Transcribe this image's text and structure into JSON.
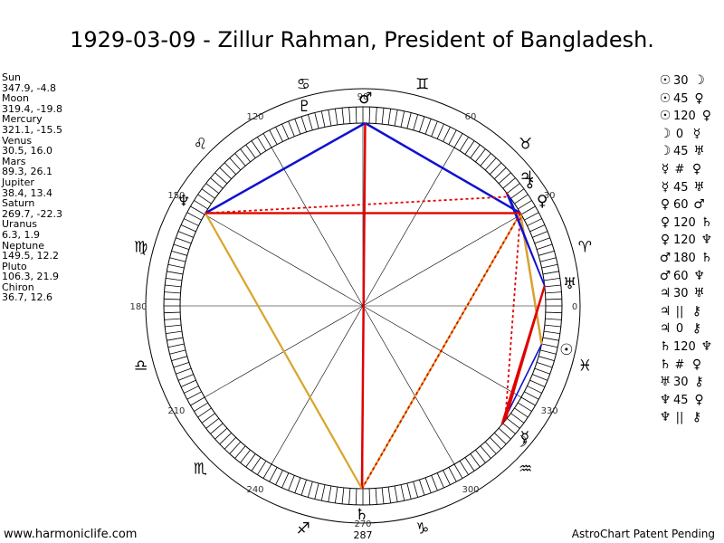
{
  "title": "1929-03-09 - Zillur Rahman, President of Bangladesh.",
  "planets": [
    {
      "name": "Sun",
      "coords": "347.9, -4.8"
    },
    {
      "name": "Moon",
      "coords": "319.4, -19.8"
    },
    {
      "name": "Mercury",
      "coords": "321.1, -15.5"
    },
    {
      "name": "Venus",
      "coords": "30.5, 16.0"
    },
    {
      "name": "Mars",
      "coords": "89.3, 26.1"
    },
    {
      "name": "Jupiter",
      "coords": "38.4, 13.4"
    },
    {
      "name": "Saturn",
      "coords": "269.7, -22.3"
    },
    {
      "name": "Uranus",
      "coords": "6.3, 1.9"
    },
    {
      "name": "Neptune",
      "coords": "149.5, 12.2"
    },
    {
      "name": "Pluto",
      "coords": "106.3, 21.9"
    },
    {
      "name": "Chiron",
      "coords": "36.7, 12.6"
    }
  ],
  "aspects": [
    {
      "a": "sun-icon",
      "ag": "☉",
      "sym": "30",
      "b": "moon-icon",
      "bg": "☽"
    },
    {
      "a": "sun-icon",
      "ag": "☉",
      "sym": "45",
      "b": "venus-icon",
      "bg": "♀"
    },
    {
      "a": "sun-icon",
      "ag": "☉",
      "sym": "120",
      "b": "venus-icon",
      "bg": "♀"
    },
    {
      "a": "moon-icon",
      "ag": "☽",
      "sym": "0",
      "b": "mercury-icon",
      "bg": "☿"
    },
    {
      "a": "moon-icon",
      "ag": "☽",
      "sym": "45",
      "b": "uranus-icon",
      "bg": "♅"
    },
    {
      "a": "mercury-icon",
      "ag": "☿",
      "sym": "#",
      "b": "venus-icon",
      "bg": "♀"
    },
    {
      "a": "mercury-icon",
      "ag": "☿",
      "sym": "45",
      "b": "uranus-icon",
      "bg": "♅"
    },
    {
      "a": "venus-icon",
      "ag": "♀",
      "sym": "60",
      "b": "mars-icon",
      "bg": "♂"
    },
    {
      "a": "venus-icon",
      "ag": "♀",
      "sym": "120",
      "b": "saturn-icon",
      "bg": "♄"
    },
    {
      "a": "venus-icon",
      "ag": "♀",
      "sym": "120",
      "b": "neptune-icon",
      "bg": "♆"
    },
    {
      "a": "mars-icon",
      "ag": "♂",
      "sym": "180",
      "b": "saturn-icon",
      "bg": "♄"
    },
    {
      "a": "mars-icon",
      "ag": "♂",
      "sym": "60",
      "b": "neptune-icon",
      "bg": "♆"
    },
    {
      "a": "jupiter-icon",
      "ag": "♃",
      "sym": "30",
      "b": "uranus-icon",
      "bg": "♅"
    },
    {
      "a": "jupiter-icon",
      "ag": "♃",
      "sym": "||",
      "b": "chiron-icon",
      "bg": "⚷"
    },
    {
      "a": "jupiter-icon",
      "ag": "♃",
      "sym": "0",
      "b": "chiron-icon",
      "bg": "⚷"
    },
    {
      "a": "saturn-icon",
      "ag": "♄",
      "sym": "120",
      "b": "neptune-icon",
      "bg": "♆"
    },
    {
      "a": "saturn-icon",
      "ag": "♄",
      "sym": "#",
      "b": "venus-icon",
      "bg": "♀"
    },
    {
      "a": "uranus-icon",
      "ag": "♅",
      "sym": "30",
      "b": "chiron-icon",
      "bg": "⚷"
    },
    {
      "a": "neptune-icon",
      "ag": "♆",
      "sym": "45",
      "b": "venus-icon",
      "bg": "♀"
    },
    {
      "a": "neptune-icon",
      "ag": "♆",
      "sym": "||",
      "b": "chiron-icon",
      "bg": "⚷"
    }
  ],
  "wheel": {
    "degree_labels": [
      "0",
      "30",
      "60",
      "90",
      "120",
      "150",
      "180",
      "210",
      "240",
      "270",
      "300",
      "330"
    ],
    "bottom_label": "287",
    "zodiac": [
      {
        "name": "aries-icon",
        "glyph": "♈"
      },
      {
        "name": "taurus-icon",
        "glyph": "♉"
      },
      {
        "name": "gemini-icon",
        "glyph": "♊"
      },
      {
        "name": "cancer-icon",
        "glyph": "♋"
      },
      {
        "name": "leo-icon",
        "glyph": "♌"
      },
      {
        "name": "virgo-icon",
        "glyph": "♍"
      },
      {
        "name": "libra-icon",
        "glyph": "♎"
      },
      {
        "name": "scorpio-icon",
        "glyph": "♏"
      },
      {
        "name": "sagittarius-icon",
        "glyph": "♐"
      },
      {
        "name": "capricorn-icon",
        "glyph": "♑"
      },
      {
        "name": "aquarius-icon",
        "glyph": "♒"
      },
      {
        "name": "pisces-icon",
        "glyph": "♓"
      }
    ],
    "planet_glyphs": [
      {
        "name": "sun-icon",
        "glyph": "☉",
        "lon": 347.9
      },
      {
        "name": "moon-icon",
        "glyph": "☽",
        "lon": 319.4
      },
      {
        "name": "mercury-icon",
        "glyph": "☿",
        "lon": 321.1
      },
      {
        "name": "venus-icon",
        "glyph": "♀",
        "lon": 30.5
      },
      {
        "name": "mars-icon",
        "glyph": "♂",
        "lon": 89.3
      },
      {
        "name": "jupiter-icon",
        "glyph": "♃",
        "lon": 38.4
      },
      {
        "name": "saturn-icon",
        "glyph": "♄",
        "lon": 269.7
      },
      {
        "name": "uranus-icon",
        "glyph": "♅",
        "lon": 6.3
      },
      {
        "name": "neptune-icon",
        "glyph": "♆",
        "lon": 149.5
      },
      {
        "name": "pluto-icon",
        "glyph": "♇",
        "lon": 106.3
      },
      {
        "name": "chiron-icon",
        "glyph": "⚷",
        "lon": 36.7
      }
    ],
    "colors": {
      "opposition": "#e00000",
      "trine": "#d9a528",
      "sextile": "#1010d0",
      "minor": "#e00000",
      "ring": "#000000"
    }
  },
  "footer": {
    "left": "www.harmoniclife.com",
    "right": "AstroChart Patent Pending"
  }
}
